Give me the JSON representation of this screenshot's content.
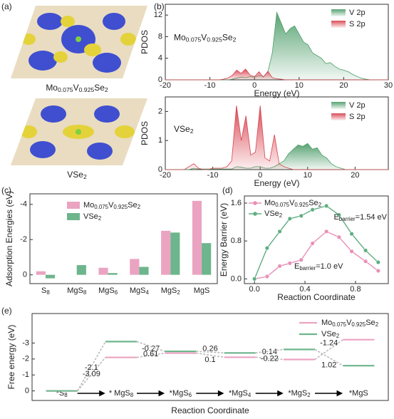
{
  "panels": [
    "(a)",
    "(b)",
    "(c)",
    "(d)",
    "(e)"
  ],
  "structures": {
    "labels": [
      [
        "Mo",
        "0.075",
        "V",
        "0.925",
        "Se",
        "2"
      ],
      [
        "VSe",
        "2"
      ]
    ]
  },
  "chart_data": [
    {
      "type": "area",
      "annotation": [
        "Mo",
        "0.075",
        "V",
        "0.925",
        "Se",
        "2"
      ],
      "xlabel": "Energy (eV)",
      "ylabel": "PDOS",
      "x": [
        -20,
        -19,
        -18,
        -17,
        -16,
        -15,
        -14,
        -13,
        -12,
        -11,
        -10,
        -9,
        -8,
        -7,
        -6,
        -5,
        -4,
        -3,
        -2,
        -1,
        0,
        1,
        2,
        3,
        4,
        5,
        6,
        7,
        8,
        9,
        10,
        11,
        12,
        13,
        14,
        15,
        16,
        17,
        18,
        19,
        20,
        21,
        22,
        23,
        24,
        25,
        26,
        27,
        28,
        29,
        30
      ],
      "xlim": [
        -20,
        30
      ],
      "xticks": [
        -20,
        -10,
        0,
        10,
        20,
        30
      ],
      "ylim": [
        0,
        14
      ],
      "yticks": [
        0,
        4,
        8,
        12
      ],
      "legend": "upper right",
      "series": [
        {
          "name": "V 2p",
          "color": "#4f9e6b",
          "values": [
            0,
            0,
            0,
            0,
            0,
            0,
            0,
            0,
            0,
            0,
            0,
            0,
            0,
            0,
            0,
            0.1,
            0.3,
            0.5,
            0.4,
            0.6,
            0.5,
            0.8,
            0.6,
            1.5,
            5,
            12.5,
            10.5,
            8.5,
            9.5,
            10,
            8.5,
            7,
            6.5,
            5,
            4.5,
            4,
            3,
            3.2,
            2.5,
            2,
            1.8,
            1.5,
            1,
            0.6,
            0.3,
            0.1,
            0,
            0,
            0,
            0,
            0
          ]
        },
        {
          "name": "S 2p",
          "color": "#d9434f",
          "values": [
            0,
            0,
            0,
            0,
            0,
            0,
            0,
            0,
            0,
            0,
            0,
            0,
            0,
            0.1,
            0.3,
            0.8,
            1.8,
            1.2,
            2.0,
            0.9,
            0.6,
            1.5,
            0.5,
            1.6,
            0.4,
            0.2,
            0.1,
            0,
            0,
            0,
            0,
            0,
            0,
            0,
            0,
            0,
            0,
            0,
            0,
            0,
            0,
            0,
            0,
            0,
            0,
            0,
            0,
            0,
            0,
            0,
            0
          ]
        }
      ]
    },
    {
      "type": "area",
      "annotation": [
        "VSe",
        "2"
      ],
      "xlabel": "Energy (eV)",
      "ylabel": "PDOS",
      "x": [
        -20,
        -19,
        -18,
        -17,
        -16,
        -15,
        -14,
        -13,
        -12,
        -11,
        -10,
        -9,
        -8,
        -7,
        -6,
        -5,
        -4,
        -3,
        -2,
        -1,
        0,
        1,
        2,
        3,
        4,
        5,
        6,
        7,
        8,
        9,
        10,
        11,
        12,
        13,
        14,
        15,
        16,
        17,
        18,
        19,
        20,
        21,
        22,
        23,
        24,
        25,
        26,
        27
      ],
      "xlim": [
        -20,
        27
      ],
      "xticks": [
        -20,
        -10,
        0,
        10,
        20
      ],
      "ylim": [
        0,
        2.5
      ],
      "yticks": [
        0,
        1,
        2
      ],
      "legend": "upper right",
      "series": [
        {
          "name": "V 2p",
          "color": "#4f9e6b",
          "values": [
            0,
            0,
            0,
            0,
            0,
            0,
            0.05,
            0.02,
            0.02,
            0.02,
            0.02,
            0.02,
            0.02,
            0.02,
            0.02,
            0.1,
            0.08,
            0.05,
            0.05,
            0.1,
            0.1,
            0.05,
            0.05,
            0.1,
            0.2,
            0.3,
            0.55,
            0.7,
            0.85,
            0.8,
            0.9,
            0.7,
            0.75,
            0.5,
            0.4,
            0.2,
            0.1,
            0.05,
            0,
            0,
            0,
            0,
            0,
            0,
            0,
            0,
            0,
            0
          ]
        },
        {
          "name": "S 2p",
          "color": "#d9434f",
          "values": [
            0,
            0,
            0,
            0,
            0,
            0.1,
            0.2,
            0.05,
            0,
            0,
            0.05,
            0.05,
            0.05,
            0.1,
            0.3,
            2.2,
            1.0,
            1.85,
            0.5,
            0.6,
            2.2,
            0.4,
            0.3,
            1.2,
            0.2,
            0.1,
            0.05,
            0,
            0,
            0,
            0,
            0,
            0,
            0,
            0,
            0,
            0,
            0,
            0,
            0,
            0,
            0,
            0,
            0,
            0,
            0,
            0,
            0
          ]
        }
      ]
    },
    {
      "type": "grouped_bar",
      "ylabel": "Adsorption Energies (eV)",
      "categories": [
        [
          "S",
          "8"
        ],
        [
          "MgS",
          "8"
        ],
        [
          "MgS",
          "6"
        ],
        [
          "MgS",
          "4"
        ],
        [
          "MgS",
          "2"
        ],
        [
          "MgS"
        ]
      ],
      "ylim": [
        0.5,
        -4.6
      ],
      "yticks": [
        0,
        -2,
        -4
      ],
      "legend": "upper left",
      "series": [
        {
          "name": [
            "Mo",
            "0.075",
            "V",
            "0.925",
            "Se",
            "2"
          ],
          "color": "#eba3c2",
          "values": [
            -0.2,
            0,
            -0.4,
            -0.9,
            -2.5,
            -4.2
          ]
        },
        {
          "name": [
            "VSe",
            "2"
          ],
          "color": "#6db58c",
          "values": [
            0.2,
            -0.55,
            -0.1,
            -0.45,
            -2.4,
            -1.8
          ]
        }
      ]
    },
    {
      "type": "line",
      "xlabel": "Reaction Coordinate",
      "ylabel": "Energy Barrier (eV)",
      "x": [
        0,
        0.1,
        0.2,
        0.28,
        0.37,
        0.46,
        0.57,
        0.67,
        0.77,
        0.88,
        0.98
      ],
      "xlim": [
        -0.08,
        1.06
      ],
      "xticks": [
        {
          "value": 0,
          "label": "0.0"
        },
        0.4,
        0.8
      ],
      "ylim": [
        -0.1,
        1.75
      ],
      "yticks": [
        {
          "value": 0,
          "label": "0.0"
        },
        0.8,
        1.6
      ],
      "legend": "upper left",
      "annotations": [
        [
          "E",
          "barrier",
          "=1.54 eV"
        ],
        [
          "E",
          "barrier",
          "=1.0 eV"
        ]
      ],
      "series": [
        {
          "name": [
            "Mo",
            "0.075",
            "V",
            "0.925",
            "Se",
            "2"
          ],
          "color": "#e98fb6",
          "values": [
            0,
            0.05,
            0.27,
            0.33,
            0.4,
            0.75,
            1.0,
            0.88,
            0.58,
            0.37,
            0.17
          ]
        },
        {
          "name": [
            "VSe",
            "2"
          ],
          "color": "#5fae82",
          "values": [
            0,
            0.65,
            1.0,
            1.27,
            1.33,
            1.46,
            1.54,
            1.35,
            0.95,
            0.6,
            0.35
          ]
        }
      ]
    },
    {
      "type": "energy_diagram",
      "xlabel": "Reaction Coordinate",
      "ylabel": "Free energy (eV)",
      "categories": [
        [
          "*S",
          "8"
        ],
        [
          "* MgS",
          "8"
        ],
        [
          "*MgS",
          "6"
        ],
        [
          "*MgS",
          "4"
        ],
        [
          "*MgS",
          "2"
        ],
        [
          "*MgS"
        ]
      ],
      "ylim": [
        0.6,
        -4.85
      ],
      "yticks": [
        0,
        -1,
        -2,
        -3
      ],
      "legend": "upper right",
      "series": [
        {
          "name": [
            "Mo",
            "0.075",
            "V",
            "0.925",
            "Se",
            "2"
          ],
          "color": "#eba3c2",
          "values": [
            0,
            -2.1,
            -2.37,
            -2.11,
            -1.97,
            -3.21
          ],
          "steps": [
            -2.1,
            -0.27,
            0.26,
            0.14,
            -1.24
          ]
        },
        {
          "name": [
            "VSe",
            "2"
          ],
          "color": "#6db58c",
          "values": [
            0,
            -3.09,
            -2.48,
            -2.38,
            -2.6,
            -1.58
          ],
          "steps": [
            -3.09,
            0.61,
            0.1,
            -0.22,
            1.02
          ]
        }
      ]
    }
  ]
}
